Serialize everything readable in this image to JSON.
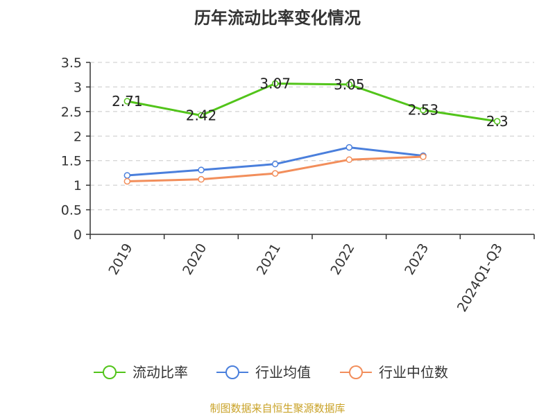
{
  "chart_data": {
    "type": "line",
    "title": "历年流动比率变化情况",
    "categories": [
      "2019",
      "2020",
      "2021",
      "2022",
      "2023",
      "2024Q1-Q3"
    ],
    "series": [
      {
        "name": "流动比率",
        "color": "#52c41a",
        "values": [
          2.71,
          2.42,
          3.07,
          3.05,
          2.53,
          2.3
        ],
        "labels": [
          "2.71",
          "2.42",
          "3.07",
          "3.05",
          "2.53",
          "2.3"
        ]
      },
      {
        "name": "行业均值",
        "color": "#4a7fdc",
        "values": [
          1.2,
          1.31,
          1.43,
          1.77,
          1.6,
          null
        ]
      },
      {
        "name": "行业中位数",
        "color": "#f28e5b",
        "values": [
          1.08,
          1.12,
          1.24,
          1.52,
          1.58,
          null
        ]
      }
    ],
    "yticks": [
      "0",
      "0.5",
      "1",
      "1.5",
      "2",
      "2.5",
      "3",
      "3.5"
    ],
    "ylim": [
      0,
      3.5
    ],
    "grid": true,
    "legend_position": "bottom"
  },
  "source_note": "制图数据来自恒生聚源数据库"
}
